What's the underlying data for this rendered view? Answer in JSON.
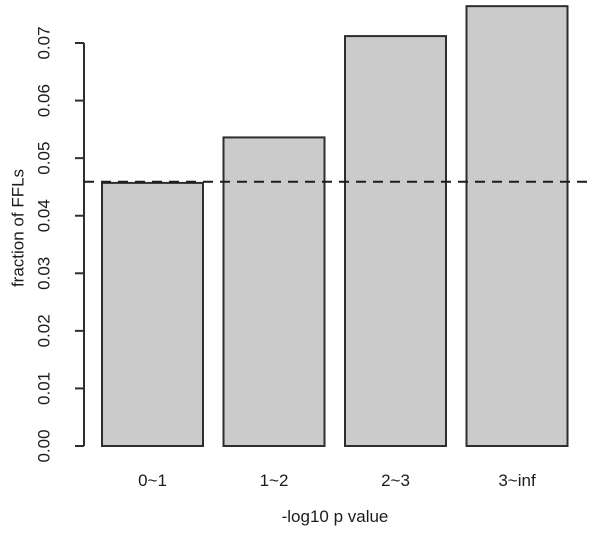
{
  "chart_data": {
    "type": "bar",
    "xlabel": "-log10 p value",
    "ylabel": "fraction of FFLs",
    "categories": [
      "0~1",
      "1~2",
      "2~3",
      "3~inf"
    ],
    "values": [
      0.0457,
      0.0536,
      0.0712,
      0.0764
    ],
    "reference_line": {
      "value": 0.0459,
      "orientation": "horizontal",
      "style": "dashed"
    },
    "ylim": [
      0,
      0.07
    ],
    "ytick_step": 0.01,
    "ytick_labels": [
      "0.00",
      "0.01",
      "0.02",
      "0.03",
      "0.04",
      "0.05",
      "0.06",
      "0.07"
    ],
    "grid": false,
    "legend": "none",
    "colors": {
      "bar_fill": "#cbcbcb",
      "bar_stroke": "#2e2e2e",
      "axis": "#2e2e2e",
      "text": "#1c1c1c",
      "reference_line": "#1c1c1c",
      "background": "#ffffff"
    }
  }
}
